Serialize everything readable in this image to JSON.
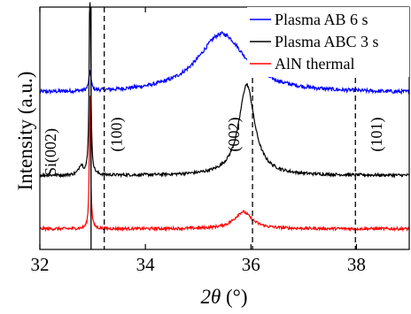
{
  "chart_data": {
    "type": "line",
    "title": "",
    "xlabel_italic": "2θ",
    "xlabel_rest": " (°)",
    "ylabel": "Intensity (a.u.)",
    "xlim": [
      32,
      39
    ],
    "x_ticks": [
      32,
      34,
      36,
      38
    ],
    "y_ticks_shown": false,
    "grid": false,
    "legend_position": "top-right",
    "series": [
      {
        "name": "Plasma AB 6 s",
        "color": "#0000ff",
        "baseline": 0.645,
        "noise": 0.008,
        "peaks": [
          {
            "x": 35.45,
            "height": 0.245,
            "width": 0.55
          },
          {
            "x": 32.95,
            "height": 0.08,
            "width": 0.025
          }
        ]
      },
      {
        "name": "Plasma ABC 3 s",
        "color": "#000000",
        "baseline": 0.305,
        "noise": 0.006,
        "peaks": [
          {
            "x": 35.92,
            "height": 0.375,
            "width": 0.18
          },
          {
            "x": 32.78,
            "height": 0.04,
            "width": 0.05
          },
          {
            "x": 32.95,
            "height": 0.95,
            "width": 0.015
          }
        ]
      },
      {
        "name": "AlN thermal",
        "color": "#ff0000",
        "baseline": 0.085,
        "noise": 0.006,
        "peaks": [
          {
            "x": 35.85,
            "height": 0.07,
            "width": 0.2
          },
          {
            "x": 32.95,
            "height": 0.55,
            "width": 0.015
          }
        ]
      }
    ],
    "vertical_lines": [
      {
        "x": 32.97,
        "label": "Si(002)",
        "style": "solid"
      },
      {
        "x": 33.22,
        "label": "(100)",
        "style": "dashed"
      },
      {
        "x": 36.03,
        "label": "(002)",
        "style": "dashed"
      },
      {
        "x": 37.98,
        "label": "(101)",
        "style": "dashed"
      }
    ]
  }
}
